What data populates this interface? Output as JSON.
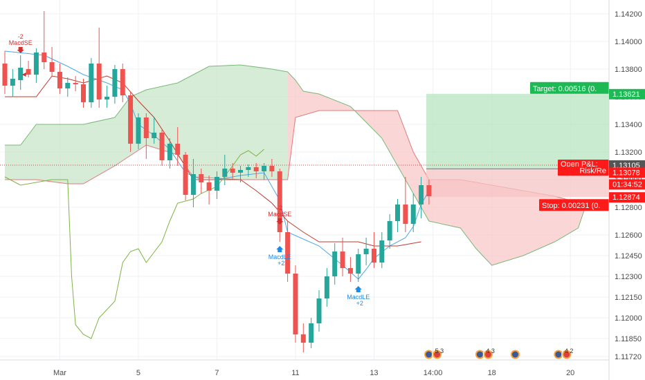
{
  "chart_data": {
    "type": "candlestick",
    "title": "",
    "xlabel": "",
    "ylabel": "",
    "ylim": [
      1.1165,
      1.143
    ],
    "x_tick_labels": [
      {
        "label": "Mar",
        "bar": 7
      },
      {
        "label": "5",
        "bar": 17
      },
      {
        "label": "7",
        "bar": 27
      },
      {
        "label": "11",
        "bar": 37
      },
      {
        "label": "13",
        "bar": 47
      },
      {
        "label": "14:00",
        "bar": 54.5
      },
      {
        "label": "18",
        "bar": 62
      },
      {
        "label": "20",
        "bar": 72
      }
    ],
    "y_tick_labels": [
      "1.14200",
      "1.14000",
      "1.13800",
      "1.13600",
      "1.13400",
      "1.13200",
      "1.13000",
      "1.12800",
      "1.12600",
      "1.12450",
      "1.12300",
      "1.12150",
      "1.12000",
      "1.11850",
      "1.11720"
    ],
    "y_tick_values": [
      1.142,
      1.14,
      1.138,
      1.136,
      1.134,
      1.132,
      1.13,
      1.128,
      1.126,
      1.1245,
      1.123,
      1.1215,
      1.12,
      1.1185,
      1.1172
    ],
    "candles": [
      [
        1.1384,
        1.1393,
        1.1362,
        1.1368
      ],
      [
        1.1368,
        1.138,
        1.136,
        1.1373
      ],
      [
        1.1372,
        1.139,
        1.1365,
        1.1381
      ],
      [
        1.138,
        1.1386,
        1.1374,
        1.1376
      ],
      [
        1.1376,
        1.1395,
        1.137,
        1.1392
      ],
      [
        1.1392,
        1.1422,
        1.138,
        1.1385
      ],
      [
        1.1385,
        1.1396,
        1.1375,
        1.1378
      ],
      [
        1.1378,
        1.1384,
        1.1362,
        1.1366
      ],
      [
        1.1366,
        1.1374,
        1.136,
        1.137
      ],
      [
        1.137,
        1.1375,
        1.1364,
        1.1369
      ],
      [
        1.1369,
        1.1373,
        1.1352,
        1.1356
      ],
      [
        1.1356,
        1.1388,
        1.1352,
        1.1384
      ],
      [
        1.1384,
        1.141,
        1.1352,
        1.1358
      ],
      [
        1.1358,
        1.1368,
        1.1352,
        1.136
      ],
      [
        1.136,
        1.1383,
        1.1355,
        1.138
      ],
      [
        1.138,
        1.1384,
        1.1356,
        1.1361
      ],
      [
        1.1361,
        1.1363,
        1.132,
        1.1326
      ],
      [
        1.1326,
        1.1348,
        1.1322,
        1.1345
      ],
      [
        1.1345,
        1.1348,
        1.1315,
        1.133
      ],
      [
        1.133,
        1.1345,
        1.1326,
        1.1334
      ],
      [
        1.1334,
        1.1336,
        1.131,
        1.1314
      ],
      [
        1.1314,
        1.133,
        1.1308,
        1.1326
      ],
      [
        1.1326,
        1.1338,
        1.131,
        1.1318
      ],
      [
        1.1318,
        1.132,
        1.1285,
        1.1289
      ],
      [
        1.1289,
        1.1315,
        1.128,
        1.1304
      ],
      [
        1.1304,
        1.1308,
        1.129,
        1.1298
      ],
      [
        1.1298,
        1.1303,
        1.1282,
        1.1292
      ],
      [
        1.1292,
        1.1306,
        1.1286,
        1.1302
      ],
      [
        1.1302,
        1.1318,
        1.1296,
        1.1308
      ],
      [
        1.1308,
        1.1312,
        1.13,
        1.1305
      ],
      [
        1.1305,
        1.131,
        1.1298,
        1.1307
      ],
      [
        1.1307,
        1.1311,
        1.1302,
        1.1309
      ],
      [
        1.1309,
        1.1312,
        1.1301,
        1.1306
      ],
      [
        1.1306,
        1.1312,
        1.13,
        1.131
      ],
      [
        1.131,
        1.1315,
        1.1302,
        1.1306
      ],
      [
        1.1306,
        1.1308,
        1.1255,
        1.1262
      ],
      [
        1.1262,
        1.127,
        1.1226,
        1.1232
      ],
      [
        1.1232,
        1.1238,
        1.1182,
        1.1188
      ],
      [
        1.1188,
        1.1196,
        1.1175,
        1.1182
      ],
      [
        1.1182,
        1.12,
        1.1178,
        1.1196
      ],
      [
        1.1196,
        1.122,
        1.119,
        1.1214
      ],
      [
        1.1214,
        1.1236,
        1.1208,
        1.123
      ],
      [
        1.123,
        1.1254,
        1.1224,
        1.1248
      ],
      [
        1.1248,
        1.1258,
        1.123,
        1.1236
      ],
      [
        1.1236,
        1.1244,
        1.1226,
        1.1232
      ],
      [
        1.1232,
        1.125,
        1.1226,
        1.1246
      ],
      [
        1.1246,
        1.1258,
        1.1238,
        1.125
      ],
      [
        1.125,
        1.1262,
        1.1236,
        1.124
      ],
      [
        1.124,
        1.1262,
        1.1236,
        1.1256
      ],
      [
        1.1256,
        1.1275,
        1.125,
        1.127
      ],
      [
        1.127,
        1.1286,
        1.1262,
        1.1282
      ],
      [
        1.1282,
        1.1302,
        1.1262,
        1.1268
      ],
      [
        1.1268,
        1.129,
        1.1262,
        1.1282
      ],
      [
        1.1282,
        1.1302,
        1.1272,
        1.1296
      ],
      [
        1.1296,
        1.13,
        1.1282,
        1.1288
      ]
    ],
    "signals": [
      {
        "bar": 2,
        "side": "short",
        "label": "MacdSE",
        "qty": "-2",
        "price": 1.1392
      },
      {
        "bar": 35,
        "side": "short",
        "label": "MacdSE",
        "qty": "-2",
        "price": 1.1268
      },
      {
        "bar": 35,
        "side": "long",
        "label": "MacdLE",
        "qty": "+2",
        "price": 1.1255
      },
      {
        "bar": 45,
        "side": "long",
        "label": "MacdLE",
        "qty": "+2",
        "price": 1.1226
      }
    ],
    "position": {
      "entry": 1.13078,
      "target_price": 1.13621,
      "stop_price": 1.12874,
      "current_price": 1.13105,
      "target_label": "Target: 0.00516 (0.",
      "stop_label": "Stop: 0.00231 (0.",
      "open_pl_label": "Open P&L:",
      "risk_reward_label": "Risk/Re",
      "countdown_label": "01:34:52"
    },
    "price_labels": {
      "target": "1.13621",
      "current": "1.13105",
      "entry": "1.13078",
      "stop": "1.12874"
    },
    "event_badges": [
      {
        "bar": 54.5,
        "count": "5 3"
      },
      {
        "bar": 61,
        "count": "4 3"
      },
      {
        "bar": 65.5,
        "count": ""
      },
      {
        "bar": 71,
        "count": "4 2"
      }
    ],
    "colors": {
      "up": "#26a69a",
      "down": "#ef5350",
      "grid": "#eef0f3",
      "tenkan": "#4aa8e8",
      "kijun": "#c0392b",
      "chikou": "#7cb342",
      "cloud_bull": "#c8e6c9",
      "cloud_bear": "#f8c8c8",
      "target_zone": "#b7e4bf",
      "stop_zone": "#f6c4c4",
      "target_tag": "#1db954",
      "stop_tag": "#ff1a1a",
      "current_tag": "#555555"
    }
  }
}
